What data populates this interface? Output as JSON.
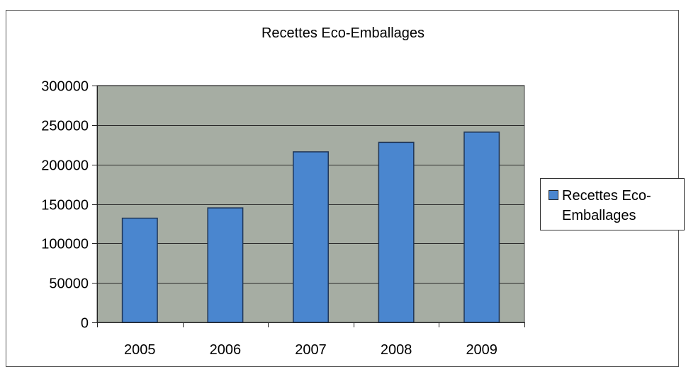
{
  "chart_data": {
    "type": "bar",
    "title": "Recettes Eco-Emballages",
    "categories": [
      "2005",
      "2006",
      "2007",
      "2008",
      "2009"
    ],
    "series": [
      {
        "name": "Recettes Eco-Emballages",
        "values": [
          132000,
          145000,
          216000,
          228000,
          241000
        ]
      }
    ],
    "ylim": [
      0,
      300000
    ],
    "yticks": [
      "0",
      "50000",
      "100000",
      "150000",
      "200000",
      "250000",
      "300000"
    ],
    "grid": true,
    "legend_position": "right",
    "colors": {
      "bar": "#4a86cf",
      "bar_border": "#1f3556",
      "plot_background": "#a6ada3",
      "gridline": "#2b2b2b"
    }
  }
}
